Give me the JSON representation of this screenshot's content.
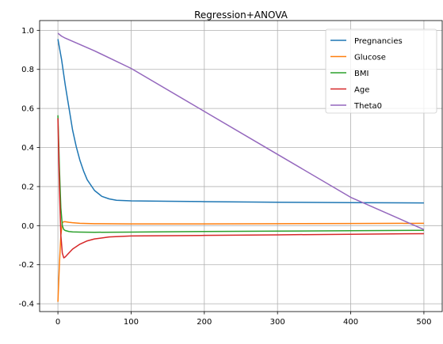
{
  "chart_data": {
    "type": "line",
    "title": "Regression+ANOVA",
    "xlabel": "",
    "ylabel": "",
    "xlim": [
      -25,
      525
    ],
    "ylim": [
      -0.44,
      1.05
    ],
    "xticks": [
      0,
      100,
      200,
      300,
      400,
      500
    ],
    "yticks": [
      -0.4,
      -0.2,
      0.0,
      0.2,
      0.4,
      0.6,
      0.8,
      1.0
    ],
    "grid": true,
    "legend_position": "top-right",
    "series": [
      {
        "name": "Pregnancies",
        "color": "#1f77b4",
        "x": [
          0,
          5,
          10,
          15,
          20,
          25,
          30,
          35,
          40,
          50,
          60,
          70,
          80,
          100,
          150,
          200,
          300,
          400,
          500
        ],
        "y": [
          0.955,
          0.85,
          0.72,
          0.605,
          0.49,
          0.405,
          0.335,
          0.28,
          0.235,
          0.18,
          0.15,
          0.137,
          0.13,
          0.127,
          0.125,
          0.123,
          0.12,
          0.118,
          0.116
        ]
      },
      {
        "name": "Glucose",
        "color": "#ff7f0e",
        "x": [
          0,
          2,
          4,
          6,
          8,
          10,
          15,
          20,
          30,
          50,
          100,
          200,
          300,
          400,
          500
        ],
        "y": [
          -0.39,
          -0.2,
          -0.05,
          0.015,
          0.02,
          0.02,
          0.017,
          0.015,
          0.012,
          0.01,
          0.009,
          0.009,
          0.01,
          0.011,
          0.012
        ]
      },
      {
        "name": "BMI",
        "color": "#2ca02c",
        "x": [
          0,
          2,
          4,
          6,
          8,
          10,
          15,
          20,
          30,
          50,
          100,
          200,
          300,
          400,
          500
        ],
        "y": [
          0.565,
          0.3,
          0.09,
          0.0,
          -0.02,
          -0.025,
          -0.03,
          -0.032,
          -0.033,
          -0.034,
          -0.033,
          -0.03,
          -0.028,
          -0.026,
          -0.024
        ]
      },
      {
        "name": "Age",
        "color": "#d62728",
        "x": [
          0,
          2,
          4,
          6,
          8,
          10,
          15,
          20,
          30,
          40,
          50,
          70,
          100,
          200,
          300,
          400,
          500
        ],
        "y": [
          0.55,
          0.2,
          -0.05,
          -0.14,
          -0.165,
          -0.16,
          -0.14,
          -0.12,
          -0.095,
          -0.078,
          -0.068,
          -0.058,
          -0.053,
          -0.05,
          -0.047,
          -0.044,
          -0.041
        ]
      },
      {
        "name": "Theta0",
        "color": "#9467bd",
        "x": [
          0,
          5,
          10,
          50,
          100,
          200,
          300,
          400,
          500
        ],
        "y": [
          0.985,
          0.97,
          0.96,
          0.895,
          0.805,
          0.585,
          0.365,
          0.145,
          -0.02
        ]
      }
    ]
  }
}
